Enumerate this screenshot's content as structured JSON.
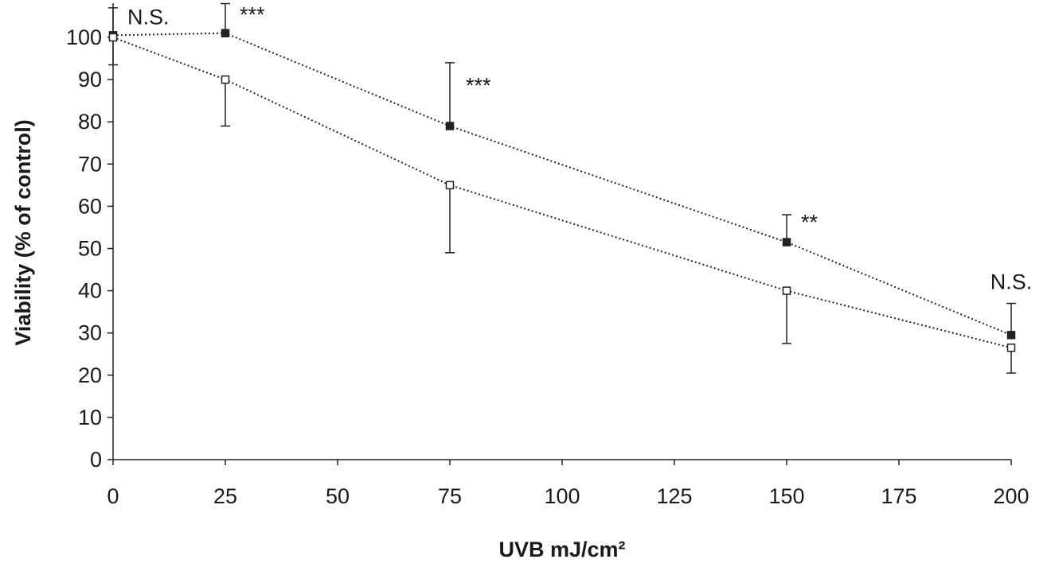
{
  "chart_data": {
    "type": "line",
    "title": "",
    "xlabel": "UVB mJ/cm²",
    "ylabel": "Viability (% of control)",
    "xlim": [
      0,
      200
    ],
    "ylim": [
      0,
      100
    ],
    "x_ticks": [
      0,
      25,
      50,
      75,
      100,
      125,
      150,
      175,
      200
    ],
    "y_ticks": [
      0,
      10,
      20,
      30,
      40,
      50,
      60,
      70,
      80,
      90,
      100
    ],
    "grid": false,
    "legend": "none",
    "series": [
      {
        "marker": "filled-square",
        "color": "#222222",
        "points": [
          {
            "x": 0,
            "y": 100.5,
            "err_low": 100.5,
            "err_high": 107
          },
          {
            "x": 25,
            "y": 101,
            "err_low": 101,
            "err_high": 108
          },
          {
            "x": 75,
            "y": 79,
            "err_low": 79,
            "err_high": 94
          },
          {
            "x": 150,
            "y": 51.5,
            "err_low": 51.5,
            "err_high": 58
          },
          {
            "x": 200,
            "y": 29.5,
            "err_low": 29.5,
            "err_high": 37
          }
        ]
      },
      {
        "marker": "open-square",
        "color": "#222222",
        "points": [
          {
            "x": 0,
            "y": 100,
            "err_low": 93.5,
            "err_high": 100
          },
          {
            "x": 25,
            "y": 90,
            "err_low": 79,
            "err_high": 90
          },
          {
            "x": 75,
            "y": 65,
            "err_low": 49,
            "err_high": 65
          },
          {
            "x": 150,
            "y": 40,
            "err_low": 27.5,
            "err_high": 40
          },
          {
            "x": 200,
            "y": 26.5,
            "err_low": 20.5,
            "err_high": 26.5
          }
        ]
      }
    ],
    "annotations": [
      {
        "text": "N.S.",
        "x": 0,
        "y": 100.5
      },
      {
        "text": "***",
        "x": 25,
        "y": 101
      },
      {
        "text": "***",
        "x": 75,
        "y": 79
      },
      {
        "text": "**",
        "x": 150,
        "y": 51.5
      },
      {
        "text": "N.S.",
        "x": 200,
        "y": 29.5
      }
    ]
  }
}
